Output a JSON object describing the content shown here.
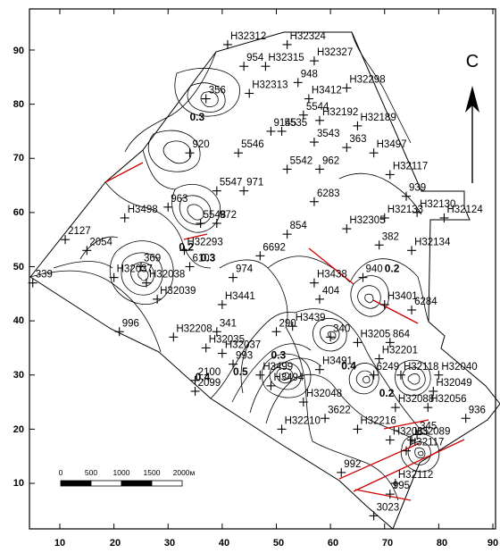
{
  "axes": {
    "x_ticks": [
      "10",
      "20",
      "30",
      "40",
      "50",
      "60",
      "70",
      "80",
      "90"
    ],
    "y_ticks": [
      "10",
      "20",
      "30",
      "40",
      "50",
      "60",
      "70",
      "80",
      "90"
    ]
  },
  "north_label": "C",
  "scale": {
    "labels": [
      "0",
      "500",
      "1000",
      "1500",
      "2000м"
    ]
  },
  "wells": [
    {
      "name": "H32312",
      "x": 41,
      "y": 91
    },
    {
      "name": "H32324",
      "x": 52,
      "y": 91
    },
    {
      "name": "954",
      "x": 44,
      "y": 87
    },
    {
      "name": "H32315",
      "x": 48,
      "y": 87
    },
    {
      "name": "H32327",
      "x": 57,
      "y": 88
    },
    {
      "name": "948",
      "x": 54,
      "y": 84
    },
    {
      "name": "H32313",
      "x": 45,
      "y": 82
    },
    {
      "name": "H32298",
      "x": 63,
      "y": 83
    },
    {
      "name": "H3412",
      "x": 56,
      "y": 81
    },
    {
      "name": "356",
      "x": 37,
      "y": 81
    },
    {
      "name": "5544",
      "x": 55,
      "y": 78
    },
    {
      "name": "H32192",
      "x": 58,
      "y": 77
    },
    {
      "name": "H32189",
      "x": 65,
      "y": 76
    },
    {
      "name": "9145",
      "x": 49,
      "y": 75
    },
    {
      "name": "5535",
      "x": 51,
      "y": 75
    },
    {
      "name": "3543",
      "x": 57,
      "y": 73
    },
    {
      "name": "363",
      "x": 63,
      "y": 72
    },
    {
      "name": "5546",
      "x": 43,
      "y": 71
    },
    {
      "name": "H3497",
      "x": 68,
      "y": 71
    },
    {
      "name": "920",
      "x": 34,
      "y": 71
    },
    {
      "name": "5542",
      "x": 52,
      "y": 68
    },
    {
      "name": "962",
      "x": 58,
      "y": 68
    },
    {
      "name": "H32117",
      "x": 71,
      "y": 67
    },
    {
      "name": "5547",
      "x": 39,
      "y": 64
    },
    {
      "name": "971",
      "x": 44,
      "y": 64
    },
    {
      "name": "939",
      "x": 74,
      "y": 63
    },
    {
      "name": "6283",
      "x": 57,
      "y": 62
    },
    {
      "name": "963",
      "x": 30,
      "y": 61
    },
    {
      "name": "H32130",
      "x": 76,
      "y": 60
    },
    {
      "name": "H3498",
      "x": 22,
      "y": 59
    },
    {
      "name": "5548",
      "x": 36,
      "y": 58
    },
    {
      "name": "972",
      "x": 39,
      "y": 58
    },
    {
      "name": "H32133",
      "x": 70,
      "y": 59
    },
    {
      "name": "H32124",
      "x": 81,
      "y": 59
    },
    {
      "name": "854",
      "x": 52,
      "y": 56
    },
    {
      "name": "H32305",
      "x": 63,
      "y": 57
    },
    {
      "name": "2127",
      "x": 11,
      "y": 55
    },
    {
      "name": "2054",
      "x": 15,
      "y": 53
    },
    {
      "name": "382",
      "x": 69,
      "y": 54
    },
    {
      "name": "H32134",
      "x": 75,
      "y": 53
    },
    {
      "name": "6692",
      "x": 47,
      "y": 52
    },
    {
      "name": "H32293",
      "x": 33,
      "y": 53
    },
    {
      "name": "369",
      "x": 25,
      "y": 50
    },
    {
      "name": "6103",
      "x": 34,
      "y": 50
    },
    {
      "name": "974",
      "x": 42,
      "y": 48
    },
    {
      "name": "H3438",
      "x": 57,
      "y": 47
    },
    {
      "name": "940",
      "x": 66,
      "y": 48
    },
    {
      "name": "339",
      "x": 5,
      "y": 47
    },
    {
      "name": "H32037",
      "x": 20,
      "y": 48
    },
    {
      "name": "H32038",
      "x": 26,
      "y": 47
    },
    {
      "name": "H32039",
      "x": 28,
      "y": 44
    },
    {
      "name": "H3441",
      "x": 40,
      "y": 43
    },
    {
      "name": "404",
      "x": 58,
      "y": 44
    },
    {
      "name": "H3401",
      "x": 70,
      "y": 43
    },
    {
      "name": "6284",
      "x": 75,
      "y": 42
    },
    {
      "name": "996",
      "x": 21,
      "y": 38
    },
    {
      "name": "H3439",
      "x": 53,
      "y": 39
    },
    {
      "name": "290",
      "x": 50,
      "y": 38
    },
    {
      "name": "341",
      "x": 39,
      "y": 38
    },
    {
      "name": "340",
      "x": 60,
      "y": 37
    },
    {
      "name": "H3205",
      "x": 65,
      "y": 36
    },
    {
      "name": "864",
      "x": 71,
      "y": 36
    },
    {
      "name": "H32208",
      "x": 31,
      "y": 37
    },
    {
      "name": "H32035",
      "x": 37,
      "y": 35
    },
    {
      "name": "H32037",
      "x": 40,
      "y": 34
    },
    {
      "name": "H32201",
      "x": 69,
      "y": 33
    },
    {
      "name": "993",
      "x": 42,
      "y": 32
    },
    {
      "name": "H3491",
      "x": 58,
      "y": 31
    },
    {
      "name": "6249",
      "x": 68,
      "y": 30
    },
    {
      "name": "H32118",
      "x": 73,
      "y": 30
    },
    {
      "name": "H32040",
      "x": 80,
      "y": 30
    },
    {
      "name": "H3499",
      "x": 47,
      "y": 30
    },
    {
      "name": "2100",
      "x": 35,
      "y": 29
    },
    {
      "name": "H3494",
      "x": 49,
      "y": 28
    },
    {
      "name": "2099",
      "x": 35,
      "y": 27
    },
    {
      "name": "H32049",
      "x": 79,
      "y": 27
    },
    {
      "name": "H32048",
      "x": 55,
      "y": 25
    },
    {
      "name": "H32088",
      "x": 72,
      "y": 24
    },
    {
      "name": "H32056",
      "x": 78,
      "y": 24
    },
    {
      "name": "3622",
      "x": 59,
      "y": 22
    },
    {
      "name": "936",
      "x": 85,
      "y": 22
    },
    {
      "name": "345",
      "x": 76,
      "y": 19
    },
    {
      "name": "H32210",
      "x": 51,
      "y": 20
    },
    {
      "name": "H32216",
      "x": 65,
      "y": 20
    },
    {
      "name": "H32085",
      "x": 71,
      "y": 18
    },
    {
      "name": "H32089",
      "x": 75,
      "y": 18
    },
    {
      "name": "H32117",
      "x": 74,
      "y": 16
    },
    {
      "name": "992",
      "x": 62,
      "y": 12
    },
    {
      "name": "H32112",
      "x": 72,
      "y": 10
    },
    {
      "name": "995",
      "x": 71,
      "y": 8
    },
    {
      "name": "3023",
      "x": 68,
      "y": 4
    }
  ],
  "contour_labels": [
    {
      "text": "0.3",
      "x": 34,
      "y": 77
    },
    {
      "text": "0.2",
      "x": 32,
      "y": 53
    },
    {
      "text": "0.3",
      "x": 36,
      "y": 51
    },
    {
      "text": "0.2",
      "x": 70,
      "y": 49
    },
    {
      "text": "0.5",
      "x": 42,
      "y": 30
    },
    {
      "text": "0.4",
      "x": 35,
      "y": 29
    },
    {
      "text": "0.3",
      "x": 49,
      "y": 33
    },
    {
      "text": "0.4",
      "x": 62,
      "y": 31
    },
    {
      "text": "0.2",
      "x": 69,
      "y": 26
    }
  ]
}
